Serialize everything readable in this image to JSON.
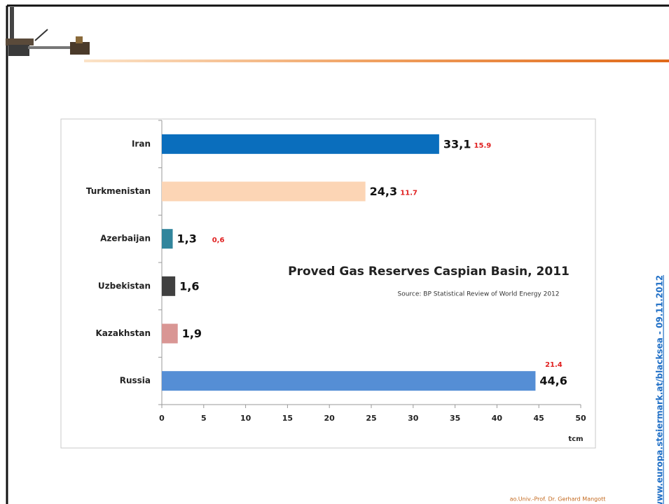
{
  "chart_data": {
    "type": "bar",
    "orientation": "horizontal",
    "title": "Proved Gas Reserves Caspian Basin, 2011",
    "subtitle": "Source: BP Statistical Review of World Energy 2012",
    "x_label": "tcm",
    "categories": [
      "Iran",
      "Turkmenistan",
      "Azerbaijan",
      "Uzbekistan",
      "Kazakhstan",
      "Russia"
    ],
    "values": [
      33.1,
      24.3,
      1.3,
      1.6,
      1.9,
      44.6
    ],
    "value_labels": [
      "33,1",
      "24,3",
      "1,3",
      "1,6",
      "1,9",
      "44,6"
    ],
    "colors": [
      "#0a6ebd",
      "#fcd5b5",
      "#31859c",
      "#404040",
      "#d99694",
      "#558ed5"
    ],
    "annotations": [
      "15.9",
      "11.7",
      "0,6",
      null,
      null,
      "21.4"
    ],
    "xlim": [
      0,
      50
    ],
    "xticks": [
      0,
      5,
      10,
      15,
      20,
      25,
      30,
      35,
      40,
      45,
      50
    ],
    "grid": false
  },
  "footer": "ao.Univ.-Prof. Dr. Gerhard Mangott",
  "side_text": "www.europa.steiermark.at/blacksea - 09.11.2012"
}
